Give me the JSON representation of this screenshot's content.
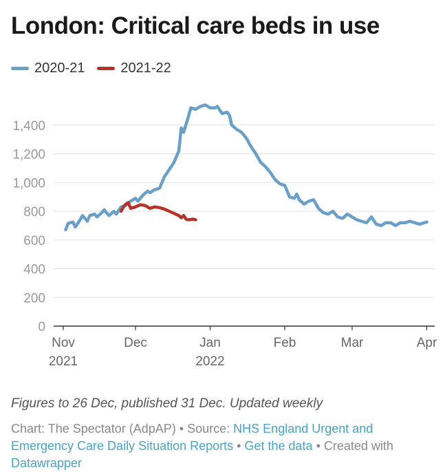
{
  "title": "London: Critical care beds in use",
  "notes": "Figures to 26 Dec, published 31 Dec. Updated weekly",
  "source": {
    "chart_credit": "Chart: The Spectator (AdpAP) •",
    "source_label": "Source:",
    "source_link": "NHS England Urgent and Emergency Care Daily Situation Reports",
    "separator": "•",
    "data_link": "Get the data",
    "created_with": "• Created with",
    "tool_link": "Datawrapper"
  },
  "colors": {
    "series_2020_21": "#6a9fc8",
    "series_2021_22": "#b73229",
    "axis": "#333333",
    "grid": "#e1e1e1"
  },
  "chart_data": {
    "type": "line",
    "title": "London: Critical care beds in use",
    "xlabel": "",
    "ylabel": "",
    "ylim": [
      0,
      1600
    ],
    "yticks": [
      0,
      200,
      400,
      600,
      800,
      "1,000",
      "1,200",
      "1,400"
    ],
    "ytick_values": [
      0,
      200,
      400,
      600,
      800,
      1000,
      1200,
      1400
    ],
    "xlim_days_from_nov1": [
      0,
      152
    ],
    "xticks": [
      {
        "label": "Nov",
        "sub": "2021",
        "day": 0
      },
      {
        "label": "Dec",
        "sub": "",
        "day": 30
      },
      {
        "label": "Jan",
        "sub": "2022",
        "day": 61
      },
      {
        "label": "Feb",
        "sub": "",
        "day": 92
      },
      {
        "label": "Mar",
        "sub": "",
        "day": 120
      },
      {
        "label": "Apr",
        "sub": "",
        "day": 151
      }
    ],
    "legend_position": "top-left",
    "grid": true,
    "series": [
      {
        "name": "2020-21",
        "x": [
          "Nov 1",
          "Nov 2",
          "Nov 4",
          "Nov 5",
          "Nov 7",
          "Nov 8",
          "Nov 10",
          "Nov 11",
          "Nov 13",
          "Nov 14",
          "Nov 16",
          "Nov 17",
          "Nov 19",
          "Nov 21",
          "Nov 22",
          "Nov 24",
          "Nov 26",
          "Nov 27",
          "Nov 29",
          "Nov 30",
          "Dec 1",
          "Dec 2",
          "Dec 3",
          "Dec 4",
          "Dec 6",
          "Dec 8",
          "Dec 10",
          "Dec 12",
          "Dec 14",
          "Dec 16",
          "Dec 18",
          "Dec 20",
          "Dec 21",
          "Dec 22",
          "Dec 23",
          "Dec 24",
          "Dec 25",
          "Dec 26",
          "Dec 27",
          "Dec 28",
          "Dec 29",
          "Dec 30",
          "Dec 31",
          "Jan 2",
          "Jan 4",
          "Jan 6",
          "Jan 8",
          "Jan 10",
          "Jan 12",
          "Jan 13",
          "Jan 14",
          "Jan 15",
          "Jan 17",
          "Jan 19",
          "Jan 21",
          "Jan 23",
          "Jan 25",
          "Jan 27",
          "Jan 28",
          "Jan 30",
          "Jan 31",
          "Feb 2",
          "Feb 4",
          "Feb 5",
          "Feb 6",
          "Feb 8",
          "Feb 10",
          "Feb 12",
          "Feb 14",
          "Feb 16",
          "Feb 18",
          "Feb 20",
          "Feb 22",
          "Feb 24",
          "Feb 26",
          "Feb 28",
          "Mar 2",
          "Mar 4",
          "Mar 6",
          "Mar 8",
          "Mar 10",
          "Mar 12",
          "Mar 14",
          "Mar 16",
          "Mar 18",
          "Mar 20",
          "Mar 22",
          "Mar 24",
          "Mar 26",
          "Mar 28",
          "Mar 30",
          "Apr 1"
        ],
        "values": [
          670,
          715,
          725,
          690,
          740,
          770,
          730,
          770,
          780,
          760,
          790,
          810,
          770,
          800,
          780,
          830,
          840,
          860,
          880,
          890,
          870,
          910,
          940,
          930,
          950,
          960,
          1040,
          1090,
          1140,
          1220,
          1380,
          1350,
          1460,
          1520,
          1510,
          1530,
          1540,
          1520,
          1520,
          1530,
          1480,
          1490,
          1470,
          1400,
          1370,
          1350,
          1310,
          1250,
          1200,
          1140,
          1110,
          1070,
          1020,
          990,
          980,
          900,
          890,
          920,
          880,
          850,
          870,
          880,
          820,
          790,
          780,
          800,
          760,
          750,
          780,
          760,
          740,
          730,
          720,
          760,
          710,
          700,
          720,
          720,
          700,
          720,
          720,
          730,
          720,
          710,
          720,
          720,
          730,
          720,
          720,
          720,
          730,
          725
        ],
        "points": [
          [
            1,
            670
          ],
          [
            2,
            715
          ],
          [
            4,
            725
          ],
          [
            5,
            690
          ],
          [
            7,
            740
          ],
          [
            8,
            770
          ],
          [
            10,
            730
          ],
          [
            11,
            770
          ],
          [
            13,
            780
          ],
          [
            14,
            760
          ],
          [
            16,
            790
          ],
          [
            17,
            810
          ],
          [
            19,
            770
          ],
          [
            21,
            800
          ],
          [
            22,
            780
          ],
          [
            24,
            830
          ],
          [
            26,
            840
          ],
          [
            27,
            860
          ],
          [
            29,
            880
          ],
          [
            30,
            890
          ],
          [
            31,
            870
          ],
          [
            33,
            910
          ],
          [
            35,
            940
          ],
          [
            36,
            930
          ],
          [
            38,
            950
          ],
          [
            40,
            960
          ],
          [
            42,
            1040
          ],
          [
            44,
            1090
          ],
          [
            46,
            1140
          ],
          [
            48,
            1220
          ],
          [
            49,
            1380
          ],
          [
            50,
            1350
          ],
          [
            52,
            1460
          ],
          [
            53,
            1520
          ],
          [
            55,
            1510
          ],
          [
            57,
            1530
          ],
          [
            59,
            1540
          ],
          [
            61,
            1520
          ],
          [
            63,
            1520
          ],
          [
            64,
            1530
          ],
          [
            66,
            1480
          ],
          [
            68,
            1490
          ],
          [
            69,
            1470
          ],
          [
            70,
            1400
          ],
          [
            72,
            1370
          ],
          [
            74,
            1350
          ],
          [
            76,
            1310
          ],
          [
            78,
            1250
          ],
          [
            80,
            1200
          ],
          [
            82,
            1140
          ],
          [
            84,
            1110
          ],
          [
            86,
            1070
          ],
          [
            88,
            1020
          ],
          [
            90,
            990
          ],
          [
            92,
            980
          ],
          [
            94,
            900
          ],
          [
            96,
            890
          ],
          [
            97,
            920
          ],
          [
            98,
            880
          ],
          [
            100,
            850
          ],
          [
            102,
            870
          ],
          [
            104,
            880
          ],
          [
            106,
            820
          ],
          [
            108,
            790
          ],
          [
            110,
            780
          ],
          [
            112,
            800
          ],
          [
            114,
            760
          ],
          [
            116,
            750
          ],
          [
            118,
            780
          ],
          [
            120,
            760
          ],
          [
            122,
            740
          ],
          [
            124,
            730
          ],
          [
            126,
            720
          ],
          [
            128,
            760
          ],
          [
            130,
            710
          ],
          [
            132,
            700
          ],
          [
            134,
            720
          ],
          [
            136,
            720
          ],
          [
            138,
            700
          ],
          [
            140,
            720
          ],
          [
            142,
            720
          ],
          [
            144,
            730
          ],
          [
            146,
            720
          ],
          [
            148,
            710
          ],
          [
            150,
            720
          ],
          [
            151,
            725
          ]
        ]
      },
      {
        "name": "2021-22",
        "points": [
          [
            24,
            800
          ],
          [
            25,
            830
          ],
          [
            26,
            850
          ],
          [
            27,
            860
          ],
          [
            28,
            820
          ],
          [
            30,
            830
          ],
          [
            32,
            845
          ],
          [
            34,
            840
          ],
          [
            36,
            820
          ],
          [
            38,
            830
          ],
          [
            40,
            825
          ],
          [
            42,
            815
          ],
          [
            44,
            800
          ],
          [
            46,
            785
          ],
          [
            48,
            770
          ],
          [
            49,
            755
          ],
          [
            50,
            770
          ],
          [
            51,
            745
          ],
          [
            52,
            740
          ],
          [
            54,
            745
          ],
          [
            55,
            740
          ]
        ]
      }
    ]
  }
}
